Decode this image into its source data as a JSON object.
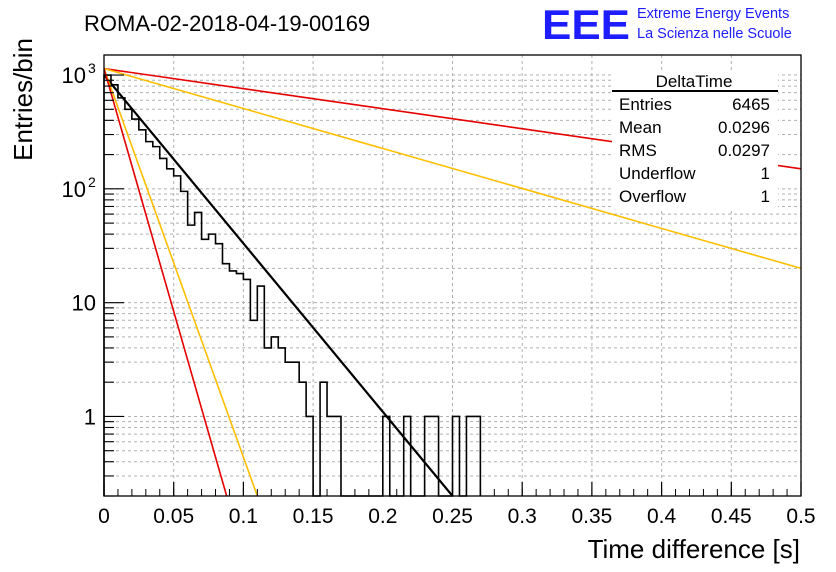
{
  "chart_data": {
    "type": "histogram",
    "title": "ROMA-02-2018-04-19-00169",
    "xlabel": "Time difference [s]",
    "ylabel": "Entries/bin",
    "xlim": [
      0,
      0.5
    ],
    "ylim": [
      0.2,
      1500
    ],
    "yscale": "log",
    "grid": true,
    "x_ticks": [
      "0",
      "0.05",
      "0.1",
      "0.15",
      "0.2",
      "0.25",
      "0.3",
      "0.35",
      "0.4",
      "0.45",
      "0.5"
    ],
    "x_tick_values": [
      0,
      0.05,
      0.1,
      0.15,
      0.2,
      0.25,
      0.3,
      0.35,
      0.4,
      0.45,
      0.5
    ],
    "y_ticks": [
      {
        "value": 1000,
        "base": "10",
        "exp": "3"
      },
      {
        "value": 100,
        "base": "10",
        "exp": "2"
      },
      {
        "value": 10,
        "base": "10",
        "exp": ""
      },
      {
        "value": 1,
        "base": "1",
        "exp": ""
      }
    ],
    "bin_width": 0.005,
    "histogram": {
      "name": "DeltaTime",
      "bin_low_edges": [
        0.0,
        0.005,
        0.01,
        0.015,
        0.02,
        0.025,
        0.03,
        0.035,
        0.04,
        0.045,
        0.05,
        0.055,
        0.06,
        0.065,
        0.07,
        0.075,
        0.08,
        0.085,
        0.09,
        0.095,
        0.1,
        0.105,
        0.11,
        0.115,
        0.12,
        0.125,
        0.13,
        0.135,
        0.14,
        0.145,
        0.15,
        0.155,
        0.16,
        0.165,
        0.17,
        0.175,
        0.18,
        0.185,
        0.19,
        0.195,
        0.2,
        0.205,
        0.21,
        0.215,
        0.22,
        0.225,
        0.23,
        0.235,
        0.24,
        0.245,
        0.25,
        0.255,
        0.26,
        0.265
      ],
      "counts": [
        1000,
        820,
        630,
        500,
        410,
        330,
        260,
        235,
        185,
        150,
        130,
        95,
        48,
        62,
        36,
        40,
        33,
        22,
        19,
        18,
        16,
        7,
        14,
        4,
        5,
        4,
        3,
        3,
        2,
        1,
        0,
        2,
        1,
        1,
        0.2,
        0.2,
        0.2,
        0.2,
        0.2,
        0.2,
        1,
        0.2,
        0.2,
        1,
        0.2,
        0.2,
        1,
        1,
        0.2,
        0.2,
        1,
        0.2,
        1,
        1
      ]
    },
    "fits": [
      {
        "name": "fit",
        "color": "#000000",
        "width": 2.2,
        "points": [
          [
            0,
            1000
          ],
          [
            0.25,
            0.2
          ]
        ]
      },
      {
        "name": "upper-band-slow",
        "color": "#e60000",
        "width": 1.6,
        "points": [
          [
            0,
            1140
          ],
          [
            0.5,
            150
          ]
        ]
      },
      {
        "name": "lower-band-slow",
        "color": "#ffbf00",
        "width": 1.6,
        "points": [
          [
            0,
            1140
          ],
          [
            0.5,
            20
          ]
        ]
      },
      {
        "name": "lower-band-fast",
        "color": "#ffbf00",
        "width": 1.6,
        "points": [
          [
            0,
            1140
          ],
          [
            0.11,
            0.2
          ]
        ]
      },
      {
        "name": "upper-band-fast",
        "color": "#e60000",
        "width": 1.6,
        "points": [
          [
            0,
            1140
          ],
          [
            0.088,
            0.2
          ]
        ]
      }
    ],
    "stats_box": {
      "title": "DeltaTime",
      "placement": "top-right",
      "rows": [
        {
          "label": "Entries",
          "value": "6465"
        },
        {
          "label": "Mean",
          "value": "0.0296"
        },
        {
          "label": "RMS",
          "value": "0.0297"
        },
        {
          "label": "Underflow",
          "value": "1"
        },
        {
          "label": "Overflow",
          "value": "1"
        }
      ]
    }
  },
  "logo": {
    "mark": "EEE",
    "line1": "Extreme Energy Events",
    "line2": "La Scienza nelle Scuole"
  },
  "colors": {
    "logo": "#1d1dff",
    "grid": "#b0b0b0",
    "axis": "#000000"
  }
}
